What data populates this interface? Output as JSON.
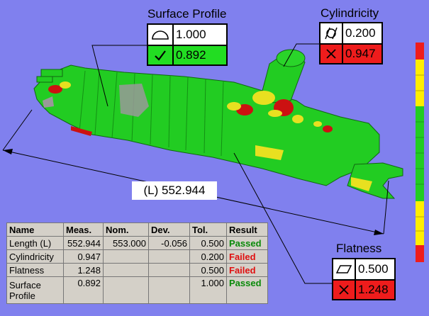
{
  "surface_profile": {
    "title": "Surface Profile",
    "tolerance": "1.000",
    "measured": "0.892",
    "tolerance_symbol": "profile-of-surface-icon",
    "status_symbol": "check-icon",
    "status_color": "#22dd22"
  },
  "cylindricity": {
    "title": "Cylindricity",
    "tolerance": "0.200",
    "measured": "0.947",
    "tolerance_symbol": "cylindricity-icon",
    "status_symbol": "cross-icon",
    "status_color": "#ee1c1c"
  },
  "flatness": {
    "title": "Flatness",
    "tolerance": "0.500",
    "measured": "1.248",
    "tolerance_symbol": "flatness-icon",
    "status_symbol": "cross-icon",
    "status_color": "#ee1c1c"
  },
  "length": {
    "label": "(L) 552.944"
  },
  "results_table": {
    "headers": [
      "Name",
      "Meas.",
      "Nom.",
      "Dev.",
      "Tol.",
      "Result"
    ],
    "rows": [
      {
        "name": "Length (L)",
        "meas": "552.944",
        "nom": "553.000",
        "dev": "-0.056",
        "tol": "0.500",
        "result": "Passed"
      },
      {
        "name": "Cylindricity",
        "meas": "0.947",
        "nom": "",
        "dev": "",
        "tol": "0.200",
        "result": "Failed"
      },
      {
        "name": "Flatness",
        "meas": "1.248",
        "nom": "",
        "dev": "",
        "tol": "0.500",
        "result": "Failed"
      },
      {
        "name": "Surface Profile",
        "meas": "0.892",
        "nom": "",
        "dev": "",
        "tol": "1.000",
        "result": "Passed"
      }
    ]
  },
  "colors": {
    "background": "#8080ee",
    "part_green": "#22cc22",
    "part_yellow": "#e8e020",
    "part_red": "#cc1111",
    "passed_text": "#0a8a0a",
    "failed_text": "#e01010"
  },
  "color_scale": [
    "red",
    "yellow",
    "green",
    "yellow",
    "red"
  ]
}
